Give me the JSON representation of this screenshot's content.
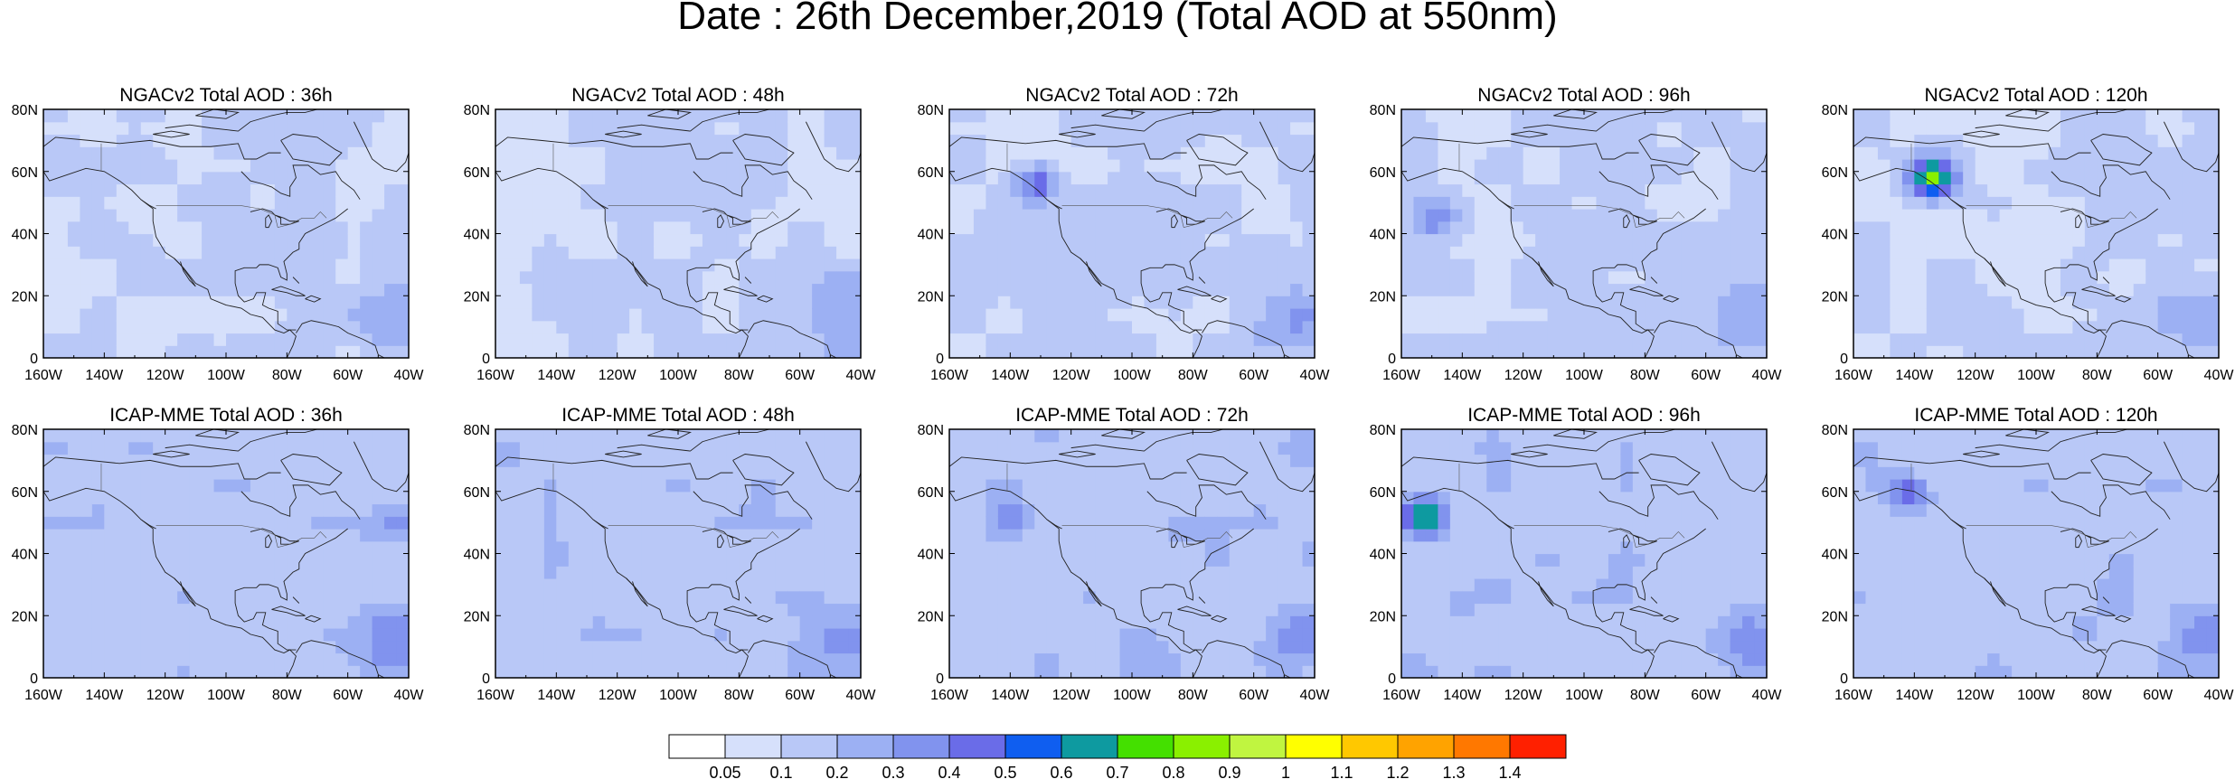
{
  "figure": {
    "title": "Date : 26th December,2019 (Total AOD at 550nm)"
  },
  "map": {
    "lon_labels": [
      "160W",
      "140W",
      "120W",
      "100W",
      "80W",
      "60W",
      "40W"
    ],
    "lat_labels": [
      "80N",
      "60N",
      "40N",
      "20N",
      "0"
    ],
    "lon_range": [
      -160,
      -40
    ],
    "lat_range": [
      0,
      80
    ]
  },
  "panels": [
    {
      "title": "NGACv2 Total AOD : 36h",
      "model": "NGACv2",
      "forecast_hour": 36,
      "hotspots": []
    },
    {
      "title": "NGACv2 Total AOD : 48h",
      "model": "NGACv2",
      "forecast_hour": 48,
      "hotspots": []
    },
    {
      "title": "NGACv2 Total AOD : 72h",
      "model": "NGACv2",
      "forecast_hour": 72,
      "hotspots": [
        {
          "lon": -133,
          "lat": 54,
          "value": 0.45
        }
      ]
    },
    {
      "title": "NGACv2 Total AOD : 96h",
      "model": "NGACv2",
      "forecast_hour": 96,
      "hotspots": [
        {
          "lon": -150,
          "lat": 43,
          "value": 0.3
        }
      ]
    },
    {
      "title": "NGACv2 Total AOD : 120h",
      "model": "NGACv2",
      "forecast_hour": 120,
      "hotspots": [
        {
          "lon": -136,
          "lat": 56,
          "value": 0.75
        }
      ]
    },
    {
      "title": "ICAP-MME Total AOD : 36h",
      "model": "ICAP-MME",
      "forecast_hour": 36,
      "hotspots": [
        {
          "lon": -45,
          "lat": 48,
          "value": 0.3
        }
      ]
    },
    {
      "title": "ICAP-MME Total AOD : 48h",
      "model": "ICAP-MME",
      "forecast_hour": 48,
      "hotspots": []
    },
    {
      "title": "ICAP-MME Total AOD : 72h",
      "model": "ICAP-MME",
      "forecast_hour": 72,
      "hotspots": [
        {
          "lon": -142,
          "lat": 50,
          "value": 0.3
        }
      ]
    },
    {
      "title": "ICAP-MME Total AOD : 96h",
      "model": "ICAP-MME",
      "forecast_hour": 96,
      "hotspots": [
        {
          "lon": -155,
          "lat": 50,
          "value": 0.75
        }
      ]
    },
    {
      "title": "ICAP-MME Total AOD : 120h",
      "model": "ICAP-MME",
      "forecast_hour": 120,
      "hotspots": [
        {
          "lon": -145,
          "lat": 58,
          "value": 0.45
        }
      ]
    }
  ],
  "colorbar": {
    "labels": [
      "0.05",
      "0.1",
      "0.2",
      "0.3",
      "0.4",
      "0.5",
      "0.6",
      "0.7",
      "0.8",
      "0.9",
      "1",
      "1.1",
      "1.2",
      "1.3",
      "1.4"
    ],
    "colors": [
      "#ffffff",
      "#d6e0fb",
      "#b9c8f7",
      "#9cb0f3",
      "#8193ee",
      "#6a6ce8",
      "#0f5ef0",
      "#0e9aa0",
      "#44e000",
      "#8af000",
      "#c0f540",
      "#ffff00",
      "#ffc800",
      "#ffa300",
      "#ff7800",
      "#ff2000"
    ]
  }
}
